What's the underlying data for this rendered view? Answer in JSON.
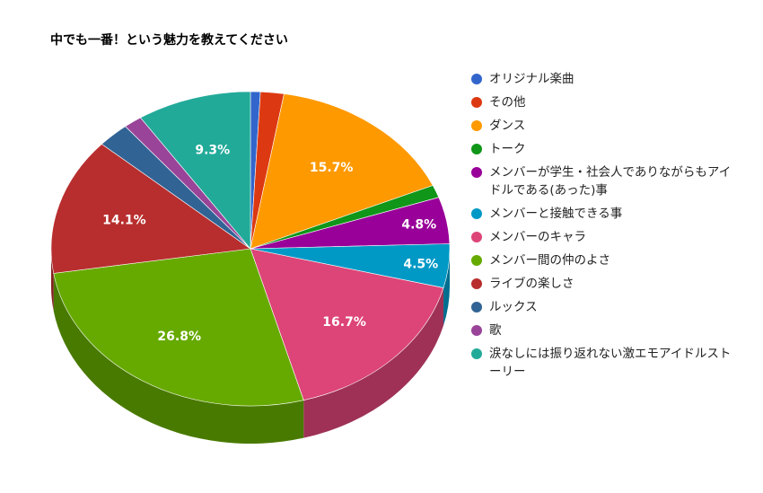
{
  "chart_data": {
    "type": "pie",
    "title": "中でも一番！という魅力を教えてください",
    "legend_position": "right",
    "slices": [
      {
        "label": "オリジナル楽曲",
        "value": 0.8,
        "color": "#3366cc",
        "show_label": false
      },
      {
        "label": "その他",
        "value": 1.9,
        "color": "#dc3912",
        "show_label": false
      },
      {
        "label": "ダンス",
        "value": 15.7,
        "color": "#ff9900",
        "show_label": true
      },
      {
        "label": "トーク",
        "value": 1.3,
        "color": "#109618",
        "show_label": false
      },
      {
        "label": "メンバーが学生・社会人でありながらもアイドルである(あった)事",
        "value": 4.8,
        "color": "#990099",
        "show_label": true
      },
      {
        "label": "メンバーと接触できる事",
        "value": 4.5,
        "color": "#0099c6",
        "show_label": true
      },
      {
        "label": "メンバーのキャラ",
        "value": 16.7,
        "color": "#dd4477",
        "show_label": true
      },
      {
        "label": "メンバー間の仲のよさ",
        "value": 26.8,
        "color": "#66aa00",
        "show_label": true
      },
      {
        "label": "ライブの楽しさ",
        "value": 14.1,
        "color": "#b82e2e",
        "show_label": true
      },
      {
        "label": "ルックス",
        "value": 2.6,
        "color": "#316395",
        "show_label": false
      },
      {
        "label": "歌",
        "value": 1.5,
        "color": "#994499",
        "show_label": false
      },
      {
        "label": "涙なしには振り返れない激エモアイドルストーリー",
        "value": 9.3,
        "color": "#22aa99",
        "show_label": true
      }
    ]
  }
}
